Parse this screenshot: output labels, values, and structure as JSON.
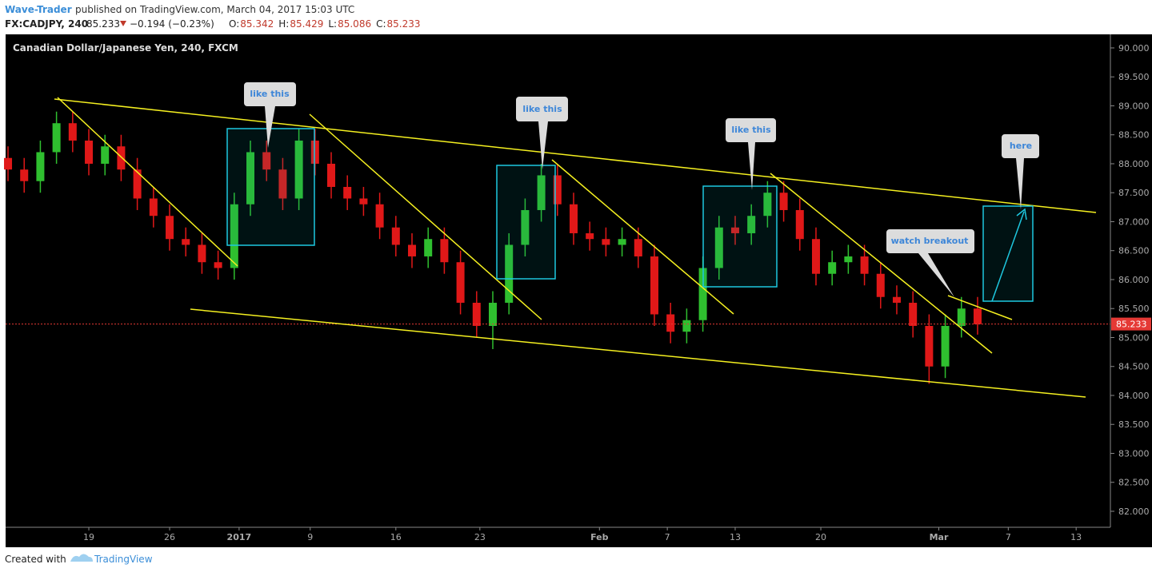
{
  "header": {
    "author": "Wave-Trader",
    "published": "published on TradingView.com, March 04, 2017 15:03 UTC",
    "symbol": "FX:CADJPY, 240",
    "last": "85.233",
    "change": "−0.194 (−0.23%)",
    "ohlc": [
      {
        "key": "O:",
        "value": "85.342"
      },
      {
        "key": "H:",
        "value": "85.429"
      },
      {
        "key": "L:",
        "value": "85.086"
      },
      {
        "key": "C:",
        "value": "85.233"
      }
    ]
  },
  "footer": {
    "created": "Created with",
    "brand": "TradingView"
  },
  "annotations": [
    "like this",
    "like this",
    "like this",
    "watch breakout",
    "here"
  ],
  "chart_data": {
    "type": "candlestick",
    "title": "Canadian Dollar/Japanese Yen, 240, FXCM",
    "up_color": "#2fbf2f",
    "down_color": "#e01818",
    "grid": false,
    "x": [
      -5,
      -4,
      -3,
      -2,
      -1,
      0,
      1,
      2,
      3,
      4,
      5,
      6,
      7,
      8,
      9,
      10,
      11,
      12,
      13,
      14,
      15,
      16,
      17,
      18,
      19,
      20,
      21,
      22,
      23,
      24,
      25,
      26,
      27,
      28,
      29,
      30,
      31,
      32,
      33,
      34,
      35,
      36,
      37,
      38,
      39,
      40,
      41,
      42,
      43,
      44,
      45,
      46,
      47,
      48,
      49,
      50,
      51,
      52,
      53,
      54,
      55
    ],
    "open": [
      88.1,
      87.9,
      87.7,
      88.2,
      88.7,
      88.4,
      88.0,
      88.3,
      87.9,
      87.4,
      87.1,
      86.7,
      86.6,
      86.3,
      86.2,
      87.3,
      88.2,
      87.9,
      87.4,
      88.4,
      88.0,
      87.6,
      87.4,
      87.3,
      86.9,
      86.6,
      86.4,
      86.7,
      86.3,
      85.6,
      85.2,
      85.6,
      86.6,
      87.2,
      87.8,
      87.3,
      86.8,
      86.7,
      86.6,
      86.7,
      86.4,
      85.4,
      85.1,
      85.3,
      86.2,
      86.9,
      86.8,
      87.1,
      87.5,
      87.2,
      86.7,
      86.1,
      86.3,
      86.4,
      86.1,
      85.7,
      85.6,
      85.2,
      84.5,
      85.2,
      85.5
    ],
    "high": [
      88.3,
      88.1,
      88.4,
      88.9,
      88.9,
      88.6,
      88.5,
      88.5,
      88.1,
      87.6,
      87.3,
      86.9,
      86.8,
      86.5,
      87.5,
      88.4,
      88.4,
      88.1,
      88.6,
      88.6,
      88.2,
      87.8,
      87.6,
      87.5,
      87.1,
      86.8,
      86.9,
      86.9,
      86.5,
      85.8,
      85.8,
      86.8,
      87.4,
      88.0,
      88.0,
      87.5,
      87.0,
      86.9,
      86.9,
      86.9,
      86.6,
      85.6,
      85.5,
      86.4,
      87.1,
      87.1,
      87.3,
      87.7,
      87.7,
      87.4,
      86.9,
      86.5,
      86.6,
      86.6,
      86.3,
      85.9,
      85.8,
      85.4,
      85.4,
      85.7,
      85.7
    ],
    "low": [
      87.7,
      87.5,
      87.5,
      88.0,
      88.2,
      87.8,
      87.8,
      87.7,
      87.2,
      86.9,
      86.5,
      86.4,
      86.1,
      86.0,
      86.0,
      87.1,
      87.7,
      87.2,
      87.2,
      87.8,
      87.4,
      87.2,
      87.1,
      86.7,
      86.4,
      86.2,
      86.2,
      86.1,
      85.4,
      85.0,
      84.8,
      85.4,
      86.4,
      87.0,
      87.1,
      86.6,
      86.5,
      86.4,
      86.4,
      86.2,
      85.2,
      84.9,
      84.9,
      85.1,
      86.0,
      86.6,
      86.6,
      86.9,
      87.0,
      86.5,
      85.9,
      85.9,
      86.1,
      85.9,
      85.5,
      85.4,
      85.0,
      84.2,
      84.3,
      85.0,
      85.05
    ],
    "close": [
      87.9,
      87.7,
      88.2,
      88.7,
      88.4,
      88.0,
      88.3,
      87.9,
      87.4,
      87.1,
      86.7,
      86.6,
      86.3,
      86.2,
      87.3,
      88.2,
      87.9,
      87.4,
      88.4,
      88.0,
      87.6,
      87.4,
      87.3,
      86.9,
      86.6,
      86.4,
      86.7,
      86.3,
      85.6,
      85.2,
      85.6,
      86.6,
      87.2,
      87.8,
      87.3,
      86.8,
      86.7,
      86.6,
      86.7,
      86.4,
      85.4,
      85.1,
      85.3,
      86.2,
      86.9,
      86.8,
      87.1,
      87.5,
      87.2,
      86.7,
      86.1,
      86.3,
      86.4,
      86.1,
      85.7,
      85.6,
      85.2,
      84.5,
      85.2,
      85.5,
      85.23
    ],
    "last_price": {
      "value": 85.233,
      "label": "85.233"
    },
    "ylim": [
      81.724,
      90.234
    ],
    "yticks": [
      {
        "value": 90,
        "label": "90.000"
      },
      {
        "value": 89.5,
        "label": "89.500"
      },
      {
        "value": 89,
        "label": "89.000"
      },
      {
        "value": 88.5,
        "label": "88.500"
      },
      {
        "value": 88,
        "label": "88.000"
      },
      {
        "value": 87.5,
        "label": "87.500"
      },
      {
        "value": 87,
        "label": "87.000"
      },
      {
        "value": 86.5,
        "label": "86.500"
      },
      {
        "value": 86,
        "label": "86.000"
      },
      {
        "value": 85.5,
        "label": "85.500"
      },
      {
        "value": 85,
        "label": "85.000"
      },
      {
        "value": 84.5,
        "label": "84.500"
      },
      {
        "value": 84,
        "label": "84.000"
      },
      {
        "value": 83.5,
        "label": "83.500"
      },
      {
        "value": 83,
        "label": "83.000"
      },
      {
        "value": 82.5,
        "label": "82.500"
      },
      {
        "value": 82,
        "label": "82.000"
      }
    ],
    "xlim": [
      -5.15,
      63.22
    ],
    "xticks": [
      {
        "value": 0,
        "label": "19"
      },
      {
        "value": 5,
        "label": "26"
      },
      {
        "value": 9.3,
        "label": "2017"
      },
      {
        "value": 13.7,
        "label": "9"
      },
      {
        "value": 19,
        "label": "16"
      },
      {
        "value": 24.2,
        "label": "23"
      },
      {
        "value": 31.6,
        "label": "Feb"
      },
      {
        "value": 35.8,
        "label": "7"
      },
      {
        "value": 40,
        "label": "13"
      },
      {
        "value": 45.3,
        "label": "20"
      },
      {
        "value": 52.6,
        "label": "Mar"
      },
      {
        "value": 56.9,
        "label": "7"
      },
      {
        "value": 61.1,
        "label": "13"
      }
    ]
  }
}
